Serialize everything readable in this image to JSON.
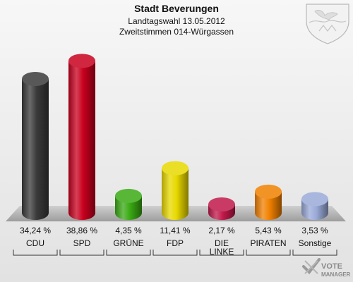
{
  "chart_data": {
    "type": "bar",
    "title": "Stadt Beverungen",
    "subtitle_1": "Landtagswahl 13.05.2012",
    "subtitle_2": "Zweitstimmen 014-Würgassen",
    "categories": [
      "CDU",
      "SPD",
      "GRÜNE",
      "FDP",
      "DIE LINKE",
      "PIRATEN",
      "Sonstige"
    ],
    "values": [
      34.24,
      38.86,
      4.35,
      11.41,
      2.17,
      5.43,
      3.53
    ],
    "value_labels": [
      "34,24 %",
      "38,86 %",
      "4,35 %",
      "11,41 %",
      "2,17 %",
      "5,43 %",
      "3,53 %"
    ],
    "colors": [
      "#3a3a3a",
      "#c8001e",
      "#3aaa14",
      "#e8d800",
      "#c0184a",
      "#f08000",
      "#9aaad8"
    ],
    "ylim": [
      0,
      40
    ],
    "grid": false,
    "legend": "none"
  },
  "branding": {
    "logo_text_1": "VOTE",
    "logo_text_2": "MANAGER"
  }
}
